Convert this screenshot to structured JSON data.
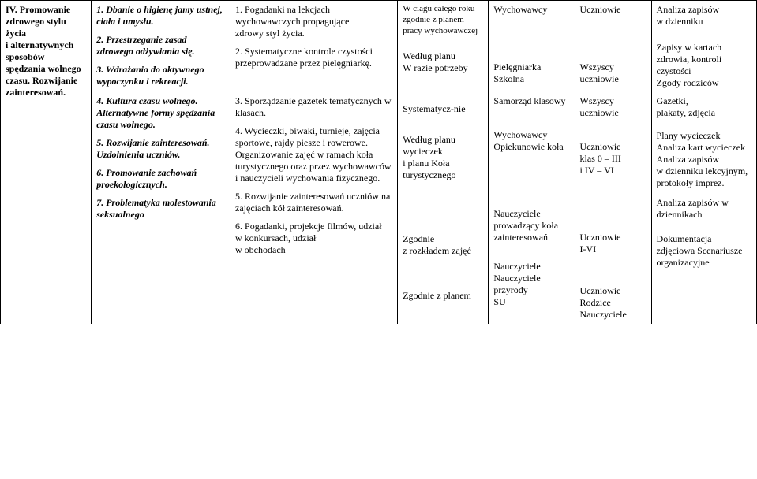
{
  "cells": {
    "r0c0": "IV. Promowanie zdrowego stylu życia\ni alternatywnych sposobów spędzania wolnego czasu. Rozwijanie zainteresowań.",
    "r0c1a": "1. Dbanie o higienę jamy ustnej, ciała i umysłu.",
    "r0c1b": "2. Przestrzeganie zasad zdrowego odżywiania się.",
    "r0c1c": "3. Wdrażania do aktywnego wypoczynku i rekreacji.",
    "r0c2a": "1. Pogadanki na lekcjach wychowawczych propagujące\nzdrowy styl życia.",
    "r0c2b": "2. Systematyczne kontrole czystości\nprzeprowadzane przez pielęgniarkę.",
    "r0c3a": "W ciągu całego roku zgodnie z planem pracy wychowawczej",
    "r0c3b": "Według planu\nW razie potrzeby",
    "r0c4a": "Wychowawcy",
    "r0c4b": "Pielęgniarka Szkolna",
    "r0c5a": "Uczniowie",
    "r0c5b": "Wszyscy uczniowie",
    "r0c6a": "Analiza zapisów\nw dzienniku",
    "r0c6b": "Zapisy w kartach zdrowia, kontroli czystości\nZgody rodziców",
    "r1c1a": "4. Kultura czasu wolnego. Alternatywne formy spędzania czasu wolnego.",
    "r1c1b": "5. Rozwijanie zainteresowań.\nUzdolnienia uczniów.",
    "r1c1c": "6. Promowanie zachowań proekologicznych.",
    "r1c1d": "7. Problematyka molestowania seksualnego",
    "r1c2a": "3. Sporządzanie gazetek tematycznych w klasach.",
    "r1c2b": "4. Wycieczki, biwaki, turnieje, zajęcia sportowe, rajdy piesze i rowerowe. Organizowanie zajęć w ramach koła turystycznego oraz przez wychowawców i nauczycieli wychowania fizycznego.",
    "r1c2c": "5. Rozwijanie zainteresowań uczniów na zajęciach kół zainteresowań.",
    "r1c2d": "6. Pogadanki, projekcje filmów, udział\n w konkursach, udział\nw obchodach",
    "r1c3a": "Systematycz-nie",
    "r1c3b": "Według planu wycieczek\ni planu Koła turystycznego",
    "r1c3c": "Zgodnie\nz rozkładem zajęć",
    "r1c3d": "Zgodnie z planem",
    "r1c4a": "Samorząd klasowy",
    "r1c4b": "Wychowawcy Opiekunowie koła",
    "r1c4c": "Nauczyciele prowadzący koła zainteresowań",
    "r1c4d": "Nauczyciele Nauczyciele przyrody\n SU",
    "r1c5a": "Wszyscy uczniowie",
    "r1c5b": "Uczniowie\nklas 0 – III\ni IV – VI",
    "r1c5c": "Uczniowie\nI-VI",
    "r1c5d": "Uczniowie Rodzice Nauczyciele",
    "r1c6a": "Gazetki,\nplakaty, zdjęcia",
    "r1c6b": "Plany wycieczek\nAnaliza kart wycieczek\nAnaliza zapisów\nw dzienniku lekcyjnym, protokoły imprez.",
    "r1c6c": "Analiza zapisów w dziennikach",
    "r1c6d": "Dokumentacja zdjęciowa Scenariusze organizacyjne"
  }
}
